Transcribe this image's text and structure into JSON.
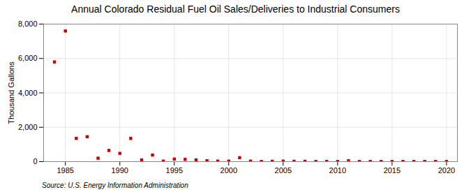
{
  "chart_data": {
    "type": "scatter",
    "title": "Annual Colorado Residual Fuel Oil Sales/Deliveries to Industrial Consumers",
    "ylabel": "Thousand Gallons",
    "source": "Source: U.S. Energy Information Administration",
    "x": [
      1984,
      1985,
      1986,
      1987,
      1988,
      1989,
      1990,
      1991,
      1992,
      1993,
      1994,
      1995,
      1996,
      1997,
      1998,
      1999,
      2000,
      2001,
      2002,
      2003,
      2004,
      2005,
      2006,
      2007,
      2008,
      2009,
      2010,
      2011,
      2012,
      2013,
      2014,
      2015,
      2016,
      2017,
      2018,
      2019,
      2020
    ],
    "values": [
      5800,
      7600,
      1350,
      1450,
      200,
      650,
      480,
      1350,
      100,
      380,
      30,
      150,
      130,
      100,
      50,
      30,
      30,
      230,
      30,
      10,
      20,
      30,
      20,
      20,
      10,
      10,
      10,
      50,
      10,
      10,
      10,
      10,
      10,
      10,
      10,
      10,
      10
    ],
    "color": "#cc0000",
    "marker": "square",
    "grid": true,
    "xlim": [
      1983,
      2021
    ],
    "xticks": [
      1985,
      1990,
      1995,
      2000,
      2005,
      2010,
      2015,
      2020
    ],
    "ylim": [
      0,
      8000
    ],
    "yticks": [
      0,
      {
        "value": 2000,
        "label": "2,000"
      },
      {
        "value": 4000,
        "label": "4,000"
      },
      {
        "value": 6000,
        "label": "6,000"
      },
      {
        "value": 8000,
        "label": "8,000"
      }
    ]
  }
}
